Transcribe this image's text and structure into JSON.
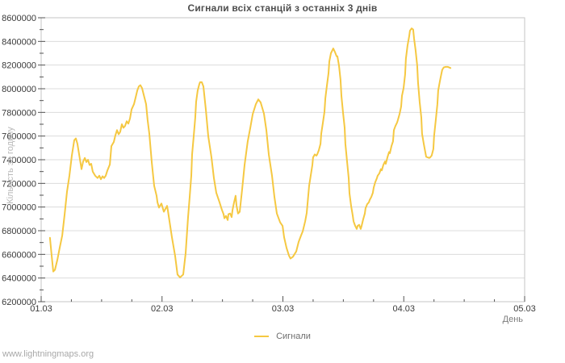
{
  "title": "Сигнали всіх станцій з останніх 3 днів",
  "watermark": "www.lightningmaps.org",
  "legend": {
    "series_label": "Сигнали",
    "position": "bottom-center"
  },
  "colors": {
    "line": "#f5c842",
    "grid": "#dcdcdc",
    "border": "#c6c6c6",
    "tick": "#555555",
    "tick_label": "#3a3a3a"
  },
  "chart_data": {
    "type": "line",
    "title": "Сигнали всіх станцій з останніх 3 днів",
    "xlabel": "День",
    "ylabel": "Кількість за годину",
    "grid": "horizontal-major",
    "legend_position": "bottom-center",
    "x_tick_labels": [
      "01.03",
      "02.03",
      "03.03",
      "04.03",
      "05.03"
    ],
    "x_range_days": [
      0,
      4
    ],
    "x_minor_step_days": 0.25,
    "ylim": [
      6200000,
      8600000
    ],
    "y_major_step": 200000,
    "y_minor_step": 100000,
    "y_tick_labels": [
      "6200000",
      "6400000",
      "6600000",
      "6800000",
      "7000000",
      "7200000",
      "7400000",
      "7600000",
      "7800000",
      "8000000",
      "8200000",
      "8400000",
      "8600000"
    ],
    "series": [
      {
        "name": "Сигнали",
        "color": "#f5c842",
        "points": [
          [
            0.073,
            6740000
          ],
          [
            0.087,
            6590000
          ],
          [
            0.1,
            6455000
          ],
          [
            0.114,
            6470000
          ],
          [
            0.134,
            6555000
          ],
          [
            0.154,
            6660000
          ],
          [
            0.174,
            6760000
          ],
          [
            0.194,
            6940000
          ],
          [
            0.214,
            7130000
          ],
          [
            0.234,
            7265000
          ],
          [
            0.254,
            7435000
          ],
          [
            0.274,
            7565000
          ],
          [
            0.287,
            7580000
          ],
          [
            0.3,
            7535000
          ],
          [
            0.321,
            7400000
          ],
          [
            0.334,
            7320000
          ],
          [
            0.347,
            7385000
          ],
          [
            0.361,
            7415000
          ],
          [
            0.374,
            7380000
          ],
          [
            0.387,
            7400000
          ],
          [
            0.401,
            7355000
          ],
          [
            0.414,
            7365000
          ],
          [
            0.427,
            7300000
          ],
          [
            0.447,
            7265000
          ],
          [
            0.467,
            7245000
          ],
          [
            0.481,
            7265000
          ],
          [
            0.494,
            7235000
          ],
          [
            0.508,
            7260000
          ],
          [
            0.521,
            7245000
          ],
          [
            0.534,
            7265000
          ],
          [
            0.548,
            7310000
          ],
          [
            0.568,
            7360000
          ],
          [
            0.581,
            7515000
          ],
          [
            0.601,
            7550000
          ],
          [
            0.614,
            7605000
          ],
          [
            0.628,
            7650000
          ],
          [
            0.641,
            7615000
          ],
          [
            0.654,
            7635000
          ],
          [
            0.668,
            7700000
          ],
          [
            0.681,
            7670000
          ],
          [
            0.694,
            7685000
          ],
          [
            0.708,
            7725000
          ],
          [
            0.721,
            7705000
          ],
          [
            0.735,
            7750000
          ],
          [
            0.748,
            7825000
          ],
          [
            0.768,
            7870000
          ],
          [
            0.781,
            7925000
          ],
          [
            0.795,
            7985000
          ],
          [
            0.808,
            8020000
          ],
          [
            0.821,
            8030000
          ],
          [
            0.835,
            8005000
          ],
          [
            0.848,
            7950000
          ],
          [
            0.868,
            7870000
          ],
          [
            0.881,
            7735000
          ],
          [
            0.895,
            7620000
          ],
          [
            0.915,
            7380000
          ],
          [
            0.935,
            7180000
          ],
          [
            0.955,
            7095000
          ],
          [
            0.962,
            7040000
          ],
          [
            0.975,
            6995000
          ],
          [
            0.995,
            7030000
          ],
          [
            1.015,
            6960000
          ],
          [
            1.042,
            7010000
          ],
          [
            1.048,
            6975000
          ],
          [
            1.082,
            6745000
          ],
          [
            1.108,
            6590000
          ],
          [
            1.128,
            6430000
          ],
          [
            1.149,
            6405000
          ],
          [
            1.175,
            6430000
          ],
          [
            1.195,
            6610000
          ],
          [
            1.215,
            6905000
          ],
          [
            1.229,
            7085000
          ],
          [
            1.242,
            7265000
          ],
          [
            1.249,
            7445000
          ],
          [
            1.262,
            7600000
          ],
          [
            1.275,
            7755000
          ],
          [
            1.282,
            7890000
          ],
          [
            1.295,
            7985000
          ],
          [
            1.309,
            8040000
          ],
          [
            1.315,
            8055000
          ],
          [
            1.329,
            8055000
          ],
          [
            1.342,
            8020000
          ],
          [
            1.362,
            7825000
          ],
          [
            1.382,
            7600000
          ],
          [
            1.409,
            7420000
          ],
          [
            1.429,
            7245000
          ],
          [
            1.449,
            7120000
          ],
          [
            1.476,
            7040000
          ],
          [
            1.496,
            6975000
          ],
          [
            1.509,
            6940000
          ],
          [
            1.516,
            6905000
          ],
          [
            1.529,
            6925000
          ],
          [
            1.543,
            6890000
          ],
          [
            1.549,
            6940000
          ],
          [
            1.563,
            6945000
          ],
          [
            1.576,
            6915000
          ],
          [
            1.583,
            6975000
          ],
          [
            1.596,
            7040000
          ],
          [
            1.609,
            7095000
          ],
          [
            1.616,
            7015000
          ],
          [
            1.629,
            6945000
          ],
          [
            1.643,
            6960000
          ],
          [
            1.663,
            7150000
          ],
          [
            1.683,
            7355000
          ],
          [
            1.709,
            7555000
          ],
          [
            1.73,
            7670000
          ],
          [
            1.75,
            7785000
          ],
          [
            1.776,
            7870000
          ],
          [
            1.796,
            7910000
          ],
          [
            1.816,
            7885000
          ],
          [
            1.843,
            7790000
          ],
          [
            1.863,
            7650000
          ],
          [
            1.883,
            7445000
          ],
          [
            1.91,
            7265000
          ],
          [
            1.93,
            7085000
          ],
          [
            1.95,
            6945000
          ],
          [
            1.977,
            6870000
          ],
          [
            1.997,
            6840000
          ],
          [
            2.01,
            6745000
          ],
          [
            2.03,
            6655000
          ],
          [
            2.05,
            6590000
          ],
          [
            2.063,
            6565000
          ],
          [
            2.083,
            6580000
          ],
          [
            2.11,
            6625000
          ],
          [
            2.13,
            6705000
          ],
          [
            2.15,
            6760000
          ],
          [
            2.164,
            6795000
          ],
          [
            2.184,
            6880000
          ],
          [
            2.197,
            6950000
          ],
          [
            2.217,
            7180000
          ],
          [
            2.244,
            7355000
          ],
          [
            2.25,
            7420000
          ],
          [
            2.264,
            7445000
          ],
          [
            2.277,
            7435000
          ],
          [
            2.284,
            7445000
          ],
          [
            2.297,
            7480000
          ],
          [
            2.311,
            7535000
          ],
          [
            2.317,
            7620000
          ],
          [
            2.331,
            7715000
          ],
          [
            2.344,
            7805000
          ],
          [
            2.351,
            7920000
          ],
          [
            2.364,
            8025000
          ],
          [
            2.377,
            8130000
          ],
          [
            2.384,
            8230000
          ],
          [
            2.397,
            8300000
          ],
          [
            2.417,
            8340000
          ],
          [
            2.431,
            8310000
          ],
          [
            2.444,
            8275000
          ],
          [
            2.451,
            8275000
          ],
          [
            2.464,
            8195000
          ],
          [
            2.477,
            8075000
          ],
          [
            2.484,
            7940000
          ],
          [
            2.497,
            7805000
          ],
          [
            2.511,
            7670000
          ],
          [
            2.517,
            7535000
          ],
          [
            2.531,
            7385000
          ],
          [
            2.544,
            7245000
          ],
          [
            2.551,
            7115000
          ],
          [
            2.564,
            7010000
          ],
          [
            2.578,
            6925000
          ],
          [
            2.584,
            6880000
          ],
          [
            2.598,
            6840000
          ],
          [
            2.611,
            6815000
          ],
          [
            2.618,
            6840000
          ],
          [
            2.631,
            6850000
          ],
          [
            2.644,
            6815000
          ],
          [
            2.651,
            6840000
          ],
          [
            2.664,
            6895000
          ],
          [
            2.678,
            6945000
          ],
          [
            2.684,
            6990000
          ],
          [
            2.698,
            7025000
          ],
          [
            2.711,
            7040000
          ],
          [
            2.718,
            7060000
          ],
          [
            2.731,
            7085000
          ],
          [
            2.744,
            7120000
          ],
          [
            2.751,
            7165000
          ],
          [
            2.764,
            7210000
          ],
          [
            2.778,
            7245000
          ],
          [
            2.784,
            7265000
          ],
          [
            2.798,
            7285000
          ],
          [
            2.811,
            7320000
          ],
          [
            2.818,
            7310000
          ],
          [
            2.831,
            7355000
          ],
          [
            2.845,
            7385000
          ],
          [
            2.851,
            7365000
          ],
          [
            2.865,
            7420000
          ],
          [
            2.878,
            7465000
          ],
          [
            2.885,
            7455000
          ],
          [
            2.898,
            7515000
          ],
          [
            2.911,
            7555000
          ],
          [
            2.918,
            7650000
          ],
          [
            2.931,
            7685000
          ],
          [
            2.945,
            7715000
          ],
          [
            2.951,
            7735000
          ],
          [
            2.965,
            7785000
          ],
          [
            2.978,
            7850000
          ],
          [
            2.985,
            7940000
          ],
          [
            2.998,
            8005000
          ],
          [
            3.011,
            8120000
          ],
          [
            3.018,
            8255000
          ],
          [
            3.031,
            8365000
          ],
          [
            3.045,
            8445000
          ],
          [
            3.051,
            8490000
          ],
          [
            3.065,
            8510000
          ],
          [
            3.078,
            8500000
          ],
          [
            3.085,
            8425000
          ],
          [
            3.098,
            8325000
          ],
          [
            3.111,
            8195000
          ],
          [
            3.118,
            8055000
          ],
          [
            3.131,
            7890000
          ],
          [
            3.145,
            7755000
          ],
          [
            3.151,
            7620000
          ],
          [
            3.165,
            7535000
          ],
          [
            3.178,
            7465000
          ],
          [
            3.185,
            7425000
          ],
          [
            3.198,
            7420000
          ],
          [
            3.211,
            7415000
          ],
          [
            3.218,
            7420000
          ],
          [
            3.231,
            7435000
          ],
          [
            3.245,
            7490000
          ],
          [
            3.251,
            7600000
          ],
          [
            3.265,
            7735000
          ],
          [
            3.278,
            7870000
          ],
          [
            3.285,
            7985000
          ],
          [
            3.298,
            8060000
          ],
          [
            3.311,
            8125000
          ],
          [
            3.318,
            8160000
          ],
          [
            3.331,
            8180000
          ],
          [
            3.345,
            8185000
          ],
          [
            3.365,
            8185000
          ],
          [
            3.386,
            8175000
          ]
        ]
      }
    ]
  }
}
